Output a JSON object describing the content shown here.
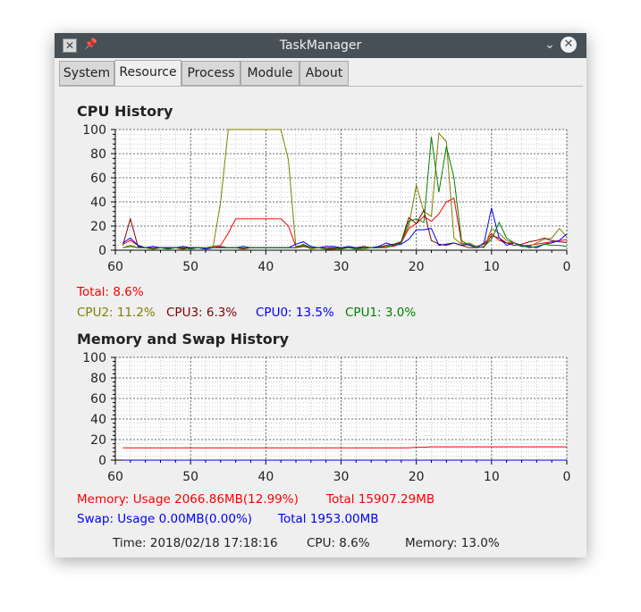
{
  "window": {
    "title": "TaskManager",
    "icons": {
      "app": "taskmanager-app-icon",
      "pin": "pin-icon",
      "minimize": "chevron-down-icon",
      "close": "close-icon"
    }
  },
  "tabs": [
    {
      "label": "System",
      "active": false
    },
    {
      "label": "Resource",
      "active": true
    },
    {
      "label": "Process",
      "active": false
    },
    {
      "label": "Module",
      "active": false
    },
    {
      "label": "About",
      "active": false
    }
  ],
  "cpu": {
    "title": "CPU History",
    "total": "Total: 8.6%",
    "cores": [
      {
        "label": "CPU2: 11.2%",
        "color": "#808000"
      },
      {
        "label": "CPU3: 6.3%",
        "color": "#800000"
      },
      {
        "label": "CPU0: 13.5%",
        "color": "#0000ff"
      },
      {
        "label": "CPU1: 3.0%",
        "color": "#008000"
      }
    ],
    "total_color": "#ff0000"
  },
  "memory": {
    "title": "Memory and Swap History",
    "memory_usage": "Memory: Usage 2066.86MB(12.99%)",
    "memory_total": "Total 15907.29MB",
    "swap_usage": "Swap: Usage 0.00MB(0.00%)",
    "swap_total": "Total 1953.00MB"
  },
  "status": {
    "time": "Time: 2018/02/18 17:18:16",
    "cpu": "CPU: 8.6%",
    "memory": "Memory: 13.0%"
  },
  "chart_data": [
    {
      "type": "line",
      "title": "CPU History",
      "x": [
        60,
        59,
        58,
        57,
        56,
        55,
        54,
        53,
        52,
        51,
        50,
        49,
        48,
        47,
        46,
        45,
        44,
        43,
        42,
        41,
        40,
        39,
        38,
        37,
        36,
        35,
        34,
        33,
        32,
        31,
        30,
        29,
        28,
        27,
        26,
        25,
        24,
        23,
        22,
        21,
        20,
        19,
        18,
        17,
        16,
        15,
        14,
        13,
        12,
        11,
        10,
        9,
        8,
        7,
        6,
        5,
        4,
        3,
        2,
        1,
        0
      ],
      "xlim": [
        60,
        0
      ],
      "ylim": [
        0,
        100
      ],
      "xticks": [
        60,
        50,
        40,
        30,
        20,
        10,
        0
      ],
      "yticks": [
        0,
        20,
        40,
        60,
        80,
        100
      ],
      "grid": true,
      "series": [
        {
          "name": "Total",
          "color": "#ff0000",
          "values": [
            null,
            5,
            8,
            4,
            2,
            2,
            2,
            2,
            2,
            2,
            2,
            2,
            2,
            3,
            4,
            14,
            26,
            26,
            26,
            26,
            26,
            26,
            26,
            20,
            3,
            4,
            2,
            2,
            2,
            2,
            2,
            2,
            2,
            2,
            2,
            3,
            3,
            3,
            6,
            18,
            22,
            28,
            24,
            30,
            40,
            43,
            6,
            4,
            3,
            5,
            14,
            8,
            6,
            6,
            4,
            4,
            5,
            6,
            7,
            8,
            8.6
          ]
        },
        {
          "name": "CPU2",
          "color": "#808000",
          "values": [
            null,
            2,
            4,
            2,
            2,
            1,
            2,
            1,
            2,
            1,
            2,
            2,
            2,
            3,
            40,
            100,
            100,
            100,
            100,
            100,
            100,
            100,
            100,
            75,
            2,
            4,
            1,
            2,
            1,
            1,
            1,
            2,
            1,
            1,
            2,
            2,
            3,
            4,
            7,
            20,
            54,
            32,
            28,
            97,
            90,
            10,
            5,
            6,
            3,
            2,
            18,
            14,
            8,
            6,
            4,
            3,
            6,
            9,
            10,
            18,
            11.2
          ]
        },
        {
          "name": "CPU3",
          "color": "#800000",
          "values": [
            null,
            4,
            26,
            3,
            2,
            1,
            2,
            2,
            2,
            1,
            2,
            2,
            1,
            2,
            3,
            2,
            2,
            1,
            2,
            2,
            2,
            2,
            2,
            2,
            2,
            3,
            2,
            2,
            1,
            1,
            2,
            2,
            2,
            3,
            2,
            2,
            4,
            5,
            7,
            27,
            22,
            33,
            8,
            5,
            4,
            6,
            4,
            2,
            2,
            3,
            12,
            10,
            6,
            4,
            5,
            7,
            8,
            10,
            8,
            7,
            6.3
          ]
        },
        {
          "name": "CPU0",
          "color": "#0000ff",
          "values": [
            null,
            6,
            10,
            4,
            2,
            3,
            2,
            2,
            2,
            3,
            2,
            2,
            1,
            2,
            2,
            2,
            2,
            3,
            2,
            2,
            2,
            2,
            2,
            2,
            5,
            7,
            3,
            2,
            3,
            3,
            2,
            3,
            2,
            2,
            2,
            3,
            6,
            4,
            5,
            9,
            17,
            17,
            18,
            4,
            5,
            6,
            4,
            5,
            2,
            6,
            35,
            10,
            4,
            6,
            3,
            3,
            2,
            5,
            6,
            8,
            13.5
          ]
        },
        {
          "name": "CPU1",
          "color": "#008000",
          "values": [
            null,
            2,
            3,
            2,
            2,
            1,
            2,
            1,
            2,
            2,
            1,
            2,
            2,
            2,
            2,
            2,
            2,
            2,
            2,
            2,
            2,
            2,
            2,
            2,
            2,
            5,
            2,
            2,
            1,
            2,
            1,
            2,
            1,
            2,
            2,
            2,
            2,
            4,
            6,
            24,
            26,
            23,
            94,
            48,
            86,
            60,
            8,
            4,
            2,
            3,
            9,
            23,
            10,
            6,
            4,
            2,
            3,
            5,
            4,
            4,
            3.0
          ]
        }
      ]
    },
    {
      "type": "line",
      "title": "Memory and Swap History",
      "x": [
        60,
        59,
        58,
        57,
        56,
        55,
        54,
        53,
        52,
        51,
        50,
        49,
        48,
        47,
        46,
        45,
        44,
        43,
        42,
        41,
        40,
        39,
        38,
        37,
        36,
        35,
        34,
        33,
        32,
        31,
        30,
        29,
        28,
        27,
        26,
        25,
        24,
        23,
        22,
        21,
        20,
        19,
        18,
        17,
        16,
        15,
        14,
        13,
        12,
        11,
        10,
        9,
        8,
        7,
        6,
        5,
        4,
        3,
        2,
        1,
        0
      ],
      "xlim": [
        60,
        0
      ],
      "ylim": [
        0,
        100
      ],
      "xticks": [
        60,
        50,
        40,
        30,
        20,
        10,
        0
      ],
      "yticks": [
        0,
        20,
        40,
        60,
        80,
        100
      ],
      "grid": true,
      "series": [
        {
          "name": "Memory",
          "color": "#ff0000",
          "values": [
            null,
            12,
            12,
            12,
            12,
            12,
            12,
            12,
            12,
            12,
            12,
            12,
            12,
            12,
            12,
            12,
            12,
            12,
            12,
            12,
            12,
            12,
            12,
            12,
            12,
            12,
            12,
            12,
            12,
            12,
            12,
            12,
            12,
            12,
            12,
            12,
            12,
            12,
            12,
            12,
            12.5,
            12.5,
            13,
            13,
            13,
            13,
            13,
            13,
            13,
            13,
            13,
            13,
            13,
            13,
            13,
            13,
            13,
            13,
            13,
            13,
            13
          ]
        },
        {
          "name": "Swap",
          "color": "#0000ff",
          "values": [
            null,
            0,
            0,
            0,
            0,
            0,
            0,
            0,
            0,
            0,
            0,
            0,
            0,
            0,
            0,
            0,
            0,
            0,
            0,
            0,
            0,
            0,
            0,
            0,
            0,
            0,
            0,
            0,
            0,
            0,
            0,
            0,
            0,
            0,
            0,
            0,
            0,
            0,
            0,
            0,
            0,
            0,
            0,
            0,
            0,
            0,
            0,
            0,
            0,
            0,
            0,
            0,
            0,
            0,
            0,
            0,
            0,
            0,
            0,
            0,
            0
          ]
        }
      ]
    }
  ]
}
